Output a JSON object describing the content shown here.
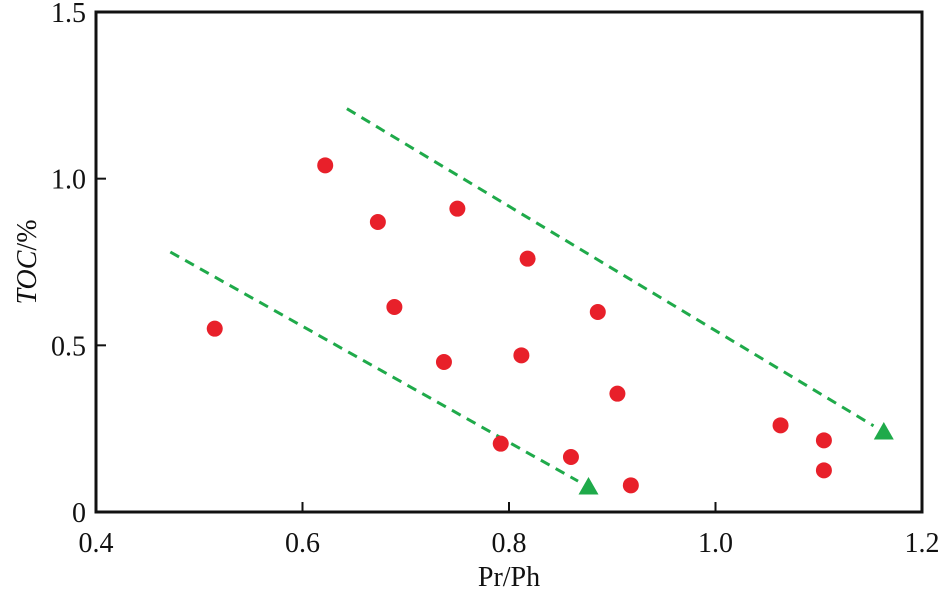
{
  "chart_data": {
    "type": "scatter",
    "xlabel": "Pr/Ph",
    "ylabel": {
      "italic": "TOC",
      "unit": "/%"
    },
    "xlim": [
      0.4,
      1.2
    ],
    "ylim": [
      0,
      1.5
    ],
    "x_ticks": [
      {
        "value": 0.4,
        "label": "0.4"
      },
      {
        "value": 0.6,
        "label": "0.6"
      },
      {
        "value": 0.8,
        "label": "0.8"
      },
      {
        "value": 1.0,
        "label": "1.0"
      },
      {
        "value": 1.2,
        "label": "1.2"
      }
    ],
    "y_ticks": [
      {
        "value": 0,
        "label": "0"
      },
      {
        "value": 0.5,
        "label": "0.5"
      },
      {
        "value": 1.0,
        "label": "1.0"
      },
      {
        "value": 1.5,
        "label": "1.5"
      }
    ],
    "grid": false,
    "legend": null,
    "series": [
      {
        "marker": "circle",
        "color": "#e8202a",
        "points": [
          {
            "x": 0.515,
            "y": 0.55
          },
          {
            "x": 0.622,
            "y": 1.04
          },
          {
            "x": 0.673,
            "y": 0.87
          },
          {
            "x": 0.689,
            "y": 0.615
          },
          {
            "x": 0.737,
            "y": 0.45
          },
          {
            "x": 0.75,
            "y": 0.91
          },
          {
            "x": 0.792,
            "y": 0.205
          },
          {
            "x": 0.812,
            "y": 0.47
          },
          {
            "x": 0.818,
            "y": 0.76
          },
          {
            "x": 0.86,
            "y": 0.165
          },
          {
            "x": 0.886,
            "y": 0.6
          },
          {
            "x": 0.905,
            "y": 0.355
          },
          {
            "x": 0.918,
            "y": 0.08
          },
          {
            "x": 1.063,
            "y": 0.26
          },
          {
            "x": 1.105,
            "y": 0.215
          },
          {
            "x": 1.105,
            "y": 0.125
          }
        ]
      }
    ],
    "trend_lines": [
      {
        "style": "dashed",
        "color": "#1faa4a",
        "arrow": "triangle",
        "from": {
          "x": 0.472,
          "y": 0.78
        },
        "to": {
          "x": 0.877,
          "y": 0.075
        }
      },
      {
        "style": "dashed",
        "color": "#1faa4a",
        "arrow": "triangle",
        "from": {
          "x": 0.643,
          "y": 1.21
        },
        "to": {
          "x": 1.163,
          "y": 0.24
        }
      }
    ]
  }
}
